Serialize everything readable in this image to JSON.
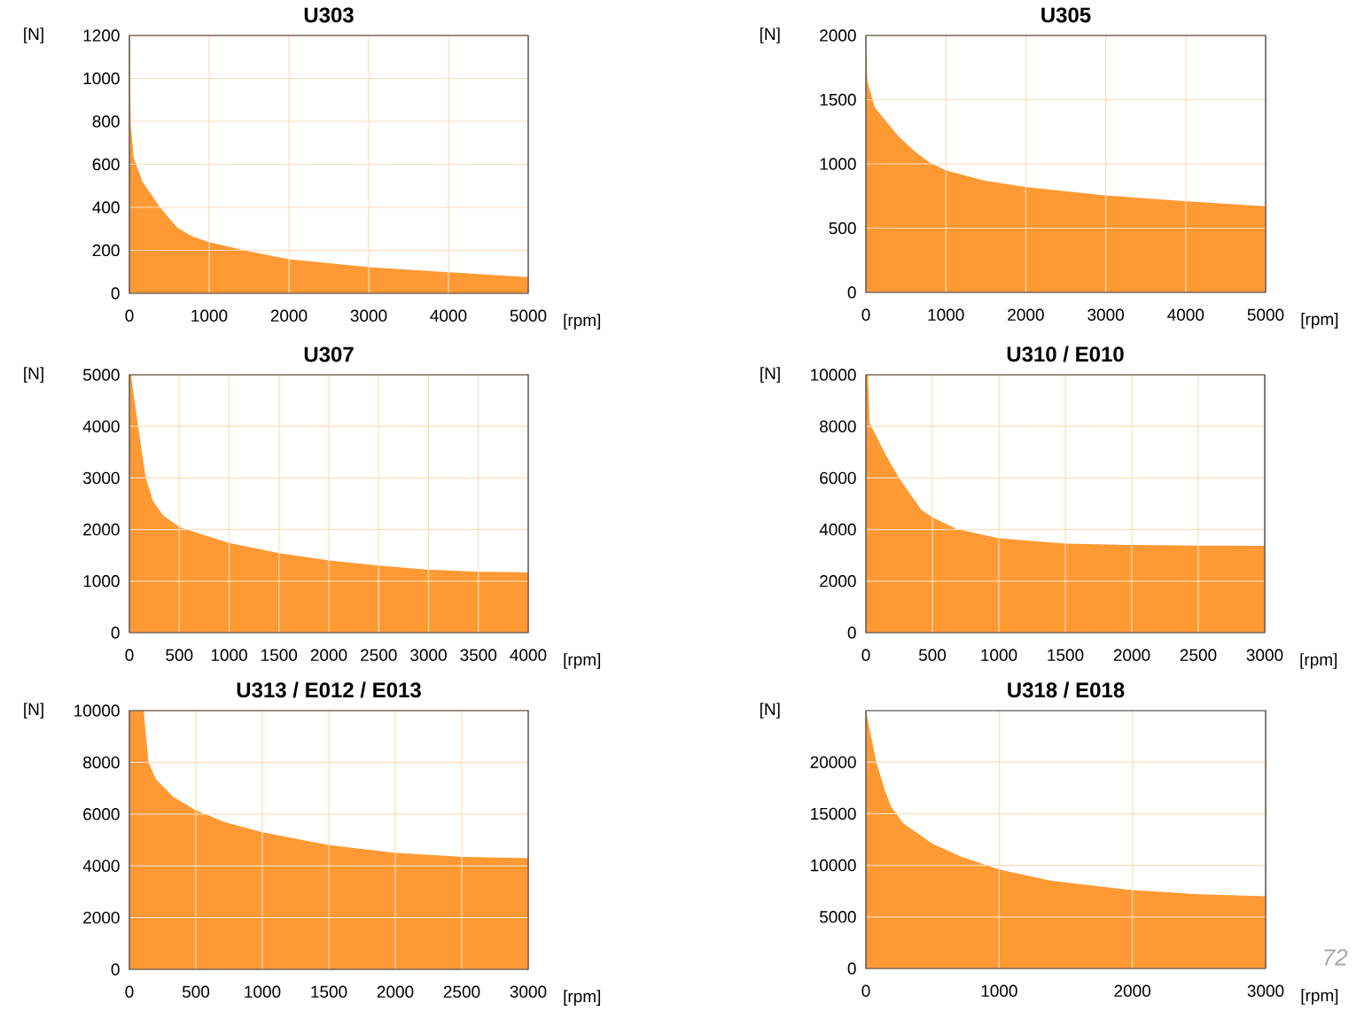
{
  "chart_data": [
    {
      "type": "area",
      "title": "U303",
      "xlabel": "[rpm]",
      "ylabel": "[N]",
      "color": "#ff9933",
      "grid": true,
      "xlim": [
        0,
        5000
      ],
      "ylim": [
        0,
        1200
      ],
      "xticks": [
        0,
        1000,
        2000,
        3000,
        4000,
        5000
      ],
      "yticks": [
        0,
        200,
        400,
        600,
        800,
        1000,
        1200
      ],
      "x": [
        0,
        18,
        55,
        164,
        383,
        602,
        785,
        1000,
        1500,
        2000,
        3000,
        4000,
        5000
      ],
      "values": [
        1200,
        780,
        630,
        520,
        400,
        305,
        265,
        238,
        195,
        159,
        122,
        98,
        75
      ]
    },
    {
      "type": "area",
      "title": "U305",
      "xlabel": "[rpm]",
      "ylabel": "[N]",
      "color": "#ff9933",
      "grid": true,
      "xlim": [
        0,
        5000
      ],
      "ylim": [
        0,
        2000
      ],
      "xticks": [
        0,
        1000,
        2000,
        3000,
        4000,
        5000
      ],
      "yticks": [
        0,
        500,
        1000,
        1500,
        2000
      ],
      "x": [
        0,
        20,
        111,
        406,
        627,
        812,
        1000,
        1476,
        1993,
        2989,
        3985,
        5000
      ],
      "values": [
        1900,
        1640,
        1440,
        1215,
        1090,
        1005,
        950,
        870,
        820,
        755,
        710,
        670
      ]
    },
    {
      "type": "area",
      "title": "U307",
      "xlabel": "[rpm]",
      "ylabel": "[N]",
      "color": "#ff9933",
      "grid": true,
      "xlim": [
        0,
        4000
      ],
      "ylim": [
        0,
        5000
      ],
      "xticks": [
        0,
        500,
        1000,
        1500,
        2000,
        2500,
        3000,
        3500,
        4000
      ],
      "yticks": [
        0,
        1000,
        2000,
        3000,
        4000,
        5000
      ],
      "x": [
        0,
        15,
        89,
        163,
        237,
        341,
        510,
        1000,
        1500,
        2000,
        2500,
        3000,
        3500,
        4000
      ],
      "values": [
        5000,
        5000,
        3980,
        3010,
        2550,
        2270,
        2040,
        1740,
        1540,
        1400,
        1300,
        1220,
        1180,
        1170
      ]
    },
    {
      "type": "area",
      "title": "U310 / E010",
      "xlabel": "[rpm]",
      "ylabel": "[N]",
      "color": "#ff9933",
      "grid": true,
      "xlim": [
        0,
        3000
      ],
      "ylim": [
        0,
        10000
      ],
      "xticks": [
        0,
        500,
        1000,
        1500,
        2000,
        2500,
        3000
      ],
      "yticks": [
        0,
        2000,
        4000,
        6000,
        8000,
        10000
      ],
      "x": [
        0,
        15,
        29,
        60,
        149,
        249,
        416,
        500,
        682,
        1000,
        1500,
        2000,
        2500,
        3000
      ],
      "values": [
        10000,
        10000,
        8100,
        7800,
        6900,
        6000,
        4770,
        4480,
        4020,
        3660,
        3450,
        3400,
        3380,
        3370
      ]
    },
    {
      "type": "area",
      "title": "U313 / E012 / E013",
      "xlabel": "[rpm]",
      "ylabel": "[N]",
      "color": "#ff9933",
      "grid": true,
      "xlim": [
        0,
        3000
      ],
      "ylim": [
        0,
        10000
      ],
      "xticks": [
        0,
        500,
        1000,
        1500,
        2000,
        2500,
        3000
      ],
      "yticks": [
        0,
        2000,
        4000,
        6000,
        8000,
        10000
      ],
      "x": [
        0,
        107,
        144,
        200,
        333,
        500,
        711,
        1000,
        1500,
        2000,
        2500,
        3000
      ],
      "values": [
        10000,
        10000,
        8000,
        7350,
        6650,
        6150,
        5700,
        5300,
        4800,
        4500,
        4350,
        4300
      ]
    },
    {
      "type": "area",
      "title": "U318 / E018",
      "xlabel": "[rpm]",
      "ylabel": "[N]",
      "color": "#ff9933",
      "grid": true,
      "xlim": [
        0,
        3000
      ],
      "ylim": [
        0,
        25000
      ],
      "xticks": [
        0,
        1000,
        2000,
        3000
      ],
      "yticks": [
        0,
        5000,
        10000,
        15000,
        20000
      ],
      "x": [
        0,
        78,
        144,
        189,
        278,
        500,
        722,
        1000,
        1389,
        2000,
        2500,
        3000
      ],
      "values": [
        25000,
        20000,
        17200,
        15700,
        14100,
        12100,
        10800,
        9600,
        8500,
        7600,
        7200,
        7000
      ],
      "annotations": [
        "72"
      ]
    }
  ]
}
